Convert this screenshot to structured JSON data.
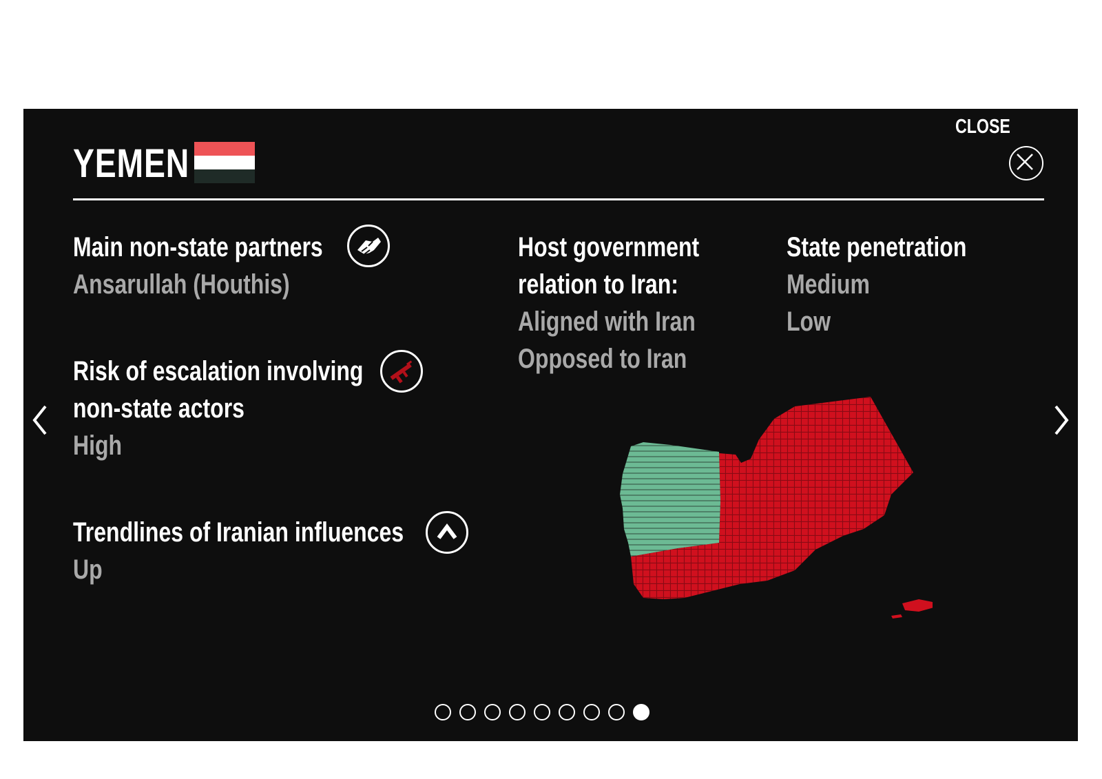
{
  "header": {
    "country": "YEMEN",
    "close_label": "CLOSE"
  },
  "flag": {
    "colors": [
      "#ee5356",
      "#ffffff",
      "#1f2b27"
    ]
  },
  "sections": {
    "partners": {
      "label": "Main non-state partners",
      "value": "Ansarullah (Houthis)",
      "icon": "handshake-icon"
    },
    "escalation": {
      "label_line1": "Risk of escalation involving",
      "label_line2": "non-state actors",
      "value": "High",
      "icon": "rifle-icon"
    },
    "trendlines": {
      "label": "Trendlines of Iranian influences",
      "value": "Up",
      "icon": "chevron-up-icon"
    },
    "host_government": {
      "label_line1": "Host government",
      "label_line2": "relation to Iran:",
      "options": [
        "Aligned with Iran",
        "Opposed to Iran"
      ]
    },
    "state_penetration": {
      "label": "State penetration",
      "options": [
        "Medium",
        "Low"
      ]
    }
  },
  "map": {
    "aligned_color": "#6cba94",
    "opposed_color": "#d0101e"
  },
  "pagination": {
    "total": 9,
    "active_index": 8
  }
}
